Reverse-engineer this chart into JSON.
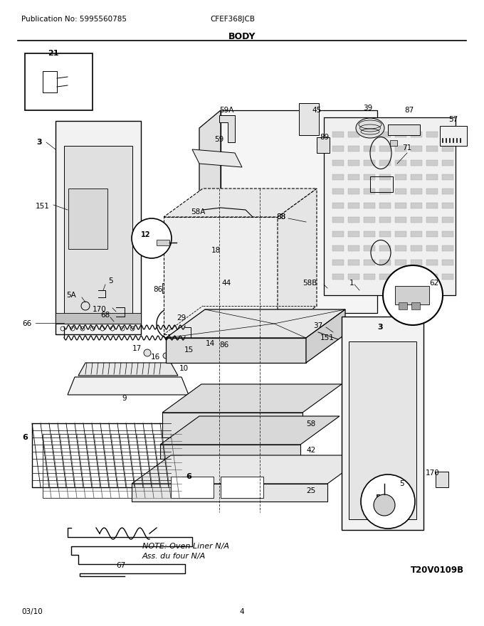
{
  "publication_no": "Publication No: 5995560785",
  "model": "CFEF368JCB",
  "section": "BODY",
  "date": "03/10",
  "page": "4",
  "diagram_image": "T20V0109B",
  "note_line1": "NOTE: Oven Liner N/A",
  "note_line2": "Ass. du four N/A",
  "bg_color": "#ffffff",
  "text_color": "#000000",
  "figsize": [
    6.8,
    8.8
  ],
  "dpi": 100
}
